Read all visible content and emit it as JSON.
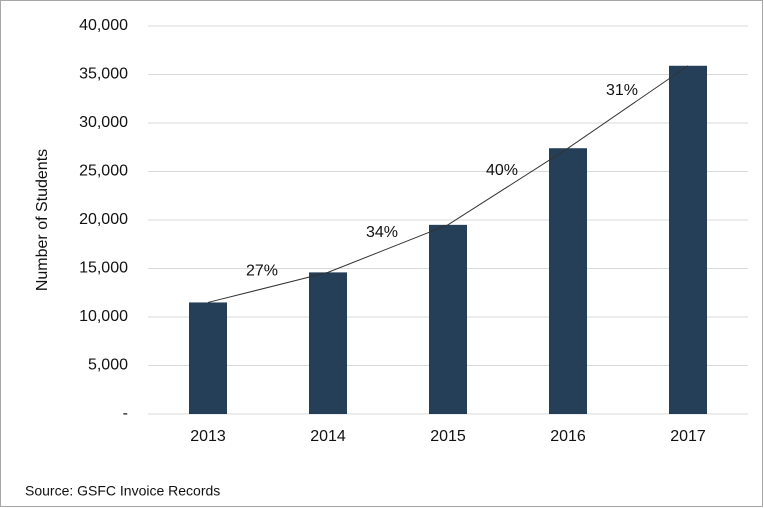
{
  "chart_data": {
    "type": "bar",
    "y_label": "Number of Students",
    "categories": [
      "2013",
      "2014",
      "2015",
      "2016",
      "2017"
    ],
    "values": [
      11500,
      14600,
      19500,
      27400,
      35900
    ],
    "color": "#243f57",
    "ylim": [
      0,
      40000
    ],
    "yticks": [
      {
        "value": 0,
        "label": "-"
      },
      {
        "value": 5000,
        "label": "5,000"
      },
      {
        "value": 10000,
        "label": "10,000"
      },
      {
        "value": 15000,
        "label": "15,000"
      },
      {
        "value": 20000,
        "label": "20,000"
      },
      {
        "value": 25000,
        "label": "25,000"
      },
      {
        "value": 30000,
        "label": "30,000"
      },
      {
        "value": 35000,
        "label": "35,000"
      },
      {
        "value": 40000,
        "label": "40,000"
      }
    ],
    "grid": true,
    "trend_line": true,
    "growth_labels": [
      "27%",
      "34%",
      "40%",
      "31%"
    ],
    "source": "Source: GSFC Invoice Records"
  }
}
